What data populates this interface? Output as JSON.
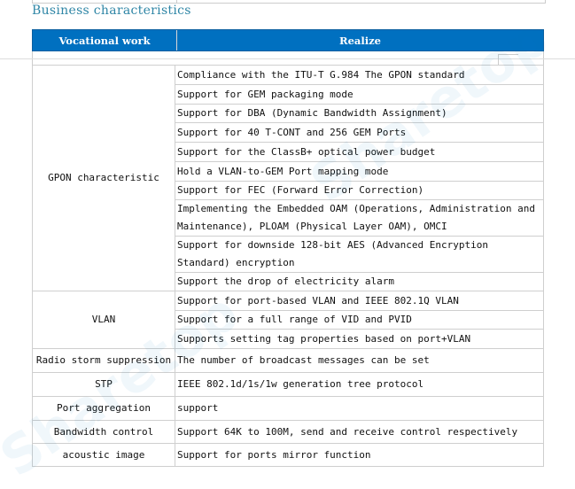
{
  "title": "Business characteristics",
  "table": {
    "headers": [
      "Vocational work",
      "Realize"
    ],
    "groups": [
      {
        "name": "GPON characteristic",
        "items": [
          "Compliance with the ITU-T G.984 The GPON standard",
          "Support for GEM packaging mode",
          "Support for DBA (Dynamic Bandwidth Assignment)",
          "Support for 40 T-CONT and 256 GEM Ports",
          "Support for the ClassB+ optical power budget",
          "Hold a VLAN-to-GEM Port mapping mode",
          "Support for FEC (Forward Error Correction)",
          "Implementing the Embedded OAM (Operations, Administration and Maintenance), PLOAM (Physical Layer OAM), OMCI",
          "Support for downside 128-bit AES (Advanced Encryption Standard) encryption",
          "Support the drop of electricity alarm"
        ]
      },
      {
        "name": "VLAN",
        "items": [
          "Support for port-based VLAN and IEEE 802.1Q VLAN",
          "Support for a full range of VID and PVID",
          "Supports setting tag properties based on port+VLAN"
        ]
      },
      {
        "name": "Radio storm suppression",
        "items": [
          "The number of broadcast messages can be set"
        ]
      },
      {
        "name": "STP",
        "items": [
          "IEEE 802.1d/1s/1w generation tree protocol"
        ]
      },
      {
        "name": "Port aggregation",
        "items": [
          "support"
        ]
      },
      {
        "name": "Bandwidth control",
        "items": [
          "Support 64K to 100M, send and receive control respectively"
        ]
      },
      {
        "name": "acoustic image",
        "items": [
          "Support for ports mirror function"
        ]
      }
    ]
  },
  "colors": {
    "header_bg": "#0070c0",
    "title": "#2f86a6"
  }
}
